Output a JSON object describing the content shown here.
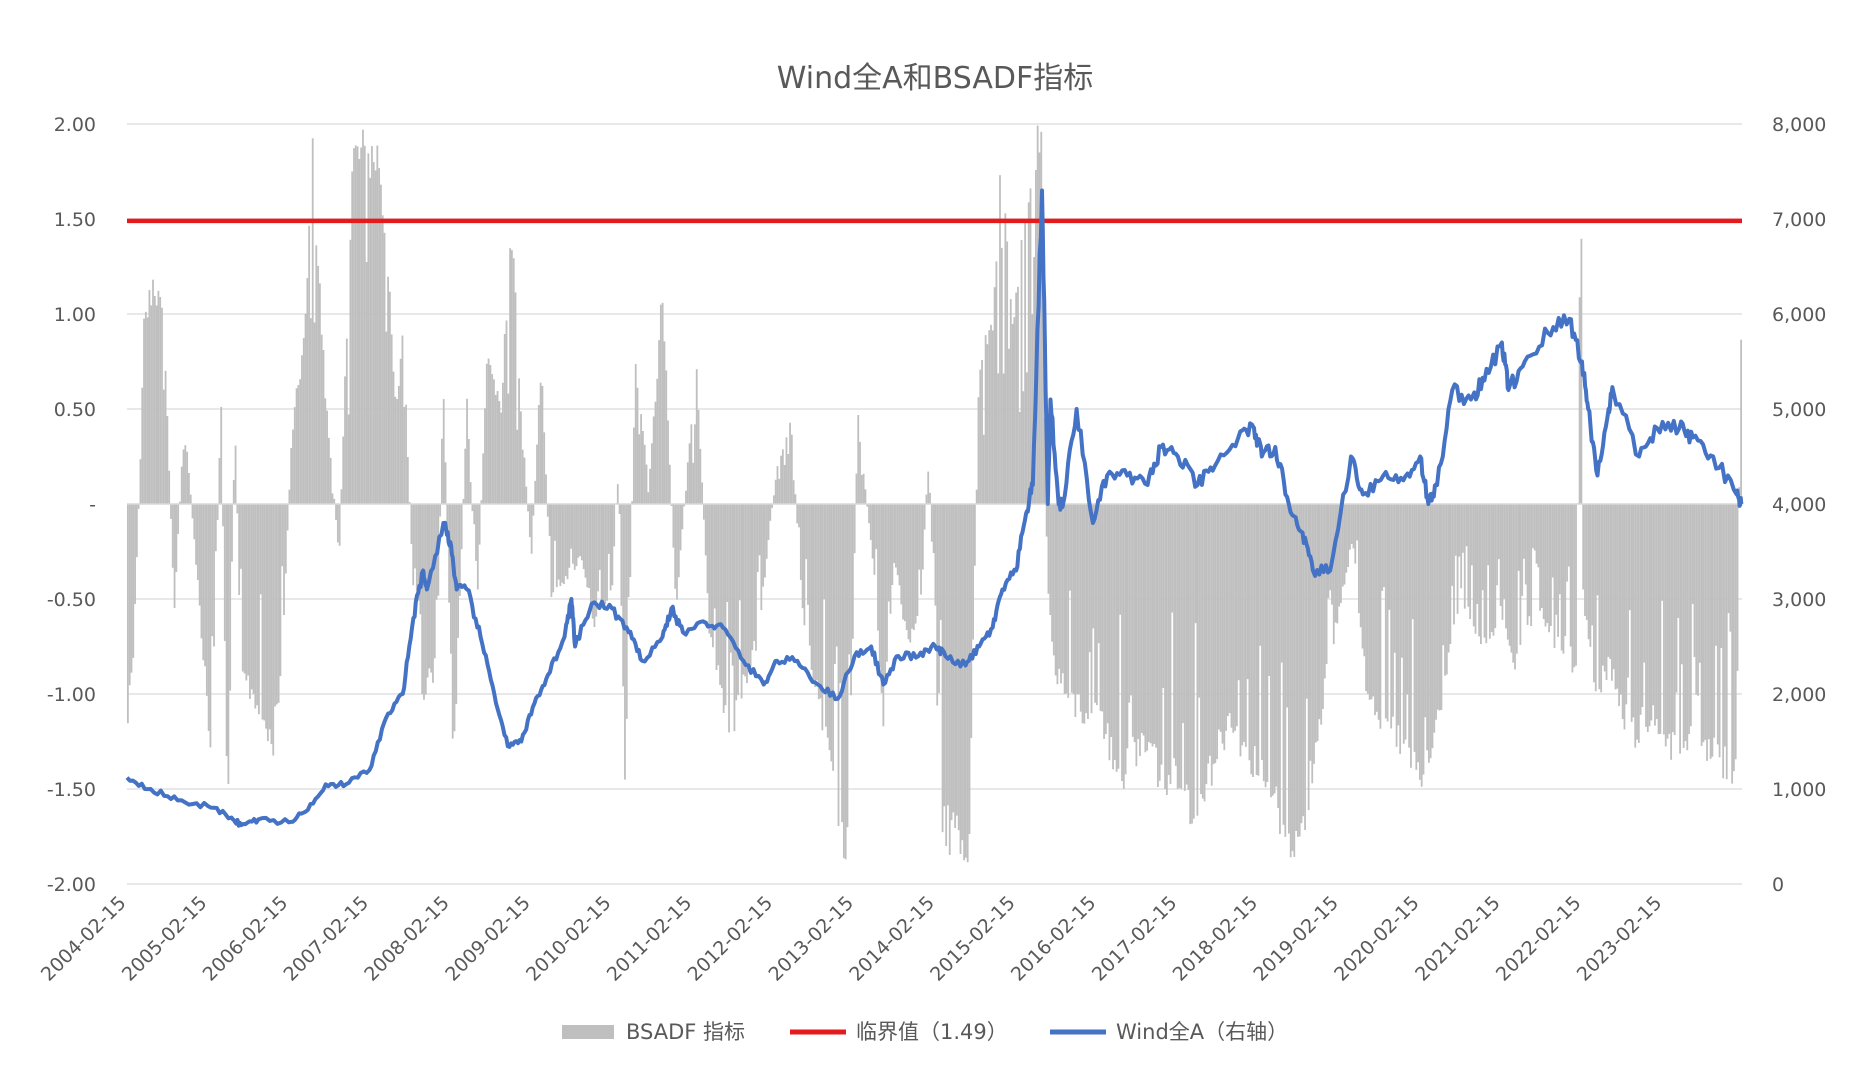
{
  "chart_data": {
    "type": "bar+line",
    "title": "Wind全A和BSADF指标",
    "left_axis": {
      "ylim": [
        -2.0,
        2.0
      ],
      "ticks": [
        {
          "value": 2.0,
          "label": "2.00"
        },
        {
          "value": 1.5,
          "label": "1.50"
        },
        {
          "value": 1.0,
          "label": "1.00"
        },
        {
          "value": 0.5,
          "label": "0.50"
        },
        {
          "value": 0.0,
          "label": "-"
        },
        {
          "value": -0.5,
          "label": "-0.50"
        },
        {
          "value": -1.0,
          "label": "-1.00"
        },
        {
          "value": -1.5,
          "label": "-1.50"
        },
        {
          "value": -2.0,
          "label": "-2.00"
        }
      ]
    },
    "right_axis": {
      "ylim": [
        0,
        8000
      ],
      "ticks": [
        {
          "value": 8000,
          "label": "8,000"
        },
        {
          "value": 7000,
          "label": "7,000"
        },
        {
          "value": 6000,
          "label": "6,000"
        },
        {
          "value": 5000,
          "label": "5,000"
        },
        {
          "value": 4000,
          "label": "4,000"
        },
        {
          "value": 3000,
          "label": "3,000"
        },
        {
          "value": 2000,
          "label": "2,000"
        },
        {
          "value": 1000,
          "label": "1,000"
        },
        {
          "value": 0,
          "label": "0"
        }
      ]
    },
    "x_axis": {
      "range": [
        "2004-02-15",
        "2024-02-08"
      ],
      "tick_labels": [
        "2004-02-15",
        "2005-02-15",
        "2006-02-15",
        "2007-02-15",
        "2008-02-15",
        "2009-02-15",
        "2010-02-15",
        "2011-02-15",
        "2012-02-15",
        "2013-02-15",
        "2014-02-15",
        "2015-02-15",
        "2016-02-15",
        "2017-02-15",
        "2018-02-15",
        "2019-02-15",
        "2020-02-15",
        "2021-02-15",
        "2022-02-15",
        "2023-02-15"
      ]
    },
    "grid": true,
    "legend_position": "bottom",
    "legend": [
      {
        "name": "BSADF 指标",
        "type": "bar",
        "color": "#bfbfbf"
      },
      {
        "name": "临界值（1.49）",
        "type": "line",
        "color": "#e41a1c"
      },
      {
        "name": "Wind全A（右轴）",
        "type": "line",
        "color": "#4472c4"
      }
    ],
    "critical_value": 1.49,
    "colors": {
      "bsadf": "#bfbfbf",
      "critical": "#e41a1c",
      "wind": "#4472c4",
      "grid": "#d9d9d9",
      "axis_text": "#595959"
    },
    "series": [
      {
        "name": "Wind全A（右轴）",
        "axis": "right",
        "points": [
          [
            "2004-02-15",
            1120
          ],
          [
            "2004-06-01",
            1000
          ],
          [
            "2004-10-01",
            880
          ],
          [
            "2005-02-15",
            820
          ],
          [
            "2005-06-01",
            700
          ],
          [
            "2005-07-15",
            620
          ],
          [
            "2005-10-01",
            680
          ],
          [
            "2006-02-15",
            650
          ],
          [
            "2006-05-01",
            760
          ],
          [
            "2006-08-01",
            1050
          ],
          [
            "2006-11-01",
            1050
          ],
          [
            "2007-02-15",
            1200
          ],
          [
            "2007-05-01",
            1750
          ],
          [
            "2007-07-15",
            2000
          ],
          [
            "2007-09-01",
            2800
          ],
          [
            "2007-10-15",
            3300
          ],
          [
            "2007-11-01",
            3100
          ],
          [
            "2008-01-15",
            3800
          ],
          [
            "2008-02-15",
            3600
          ],
          [
            "2008-03-15",
            3100
          ],
          [
            "2008-05-01",
            3100
          ],
          [
            "2008-07-01",
            2600
          ],
          [
            "2008-09-01",
            2000
          ],
          [
            "2008-11-01",
            1450
          ],
          [
            "2009-01-01",
            1500
          ],
          [
            "2009-03-01",
            1900
          ],
          [
            "2009-05-01",
            2200
          ],
          [
            "2009-07-15",
            2600
          ],
          [
            "2009-08-15",
            3000
          ],
          [
            "2009-09-01",
            2500
          ],
          [
            "2009-11-15",
            2950
          ],
          [
            "2010-02-15",
            2900
          ],
          [
            "2010-05-01",
            2650
          ],
          [
            "2010-07-01",
            2350
          ],
          [
            "2010-10-01",
            2600
          ],
          [
            "2010-11-10",
            2900
          ],
          [
            "2011-01-01",
            2650
          ],
          [
            "2011-04-15",
            2750
          ],
          [
            "2011-07-01",
            2700
          ],
          [
            "2011-10-01",
            2350
          ],
          [
            "2012-01-01",
            2100
          ],
          [
            "2012-03-01",
            2350
          ],
          [
            "2012-06-01",
            2350
          ],
          [
            "2012-09-01",
            2100
          ],
          [
            "2012-12-01",
            1950
          ],
          [
            "2013-02-15",
            2400
          ],
          [
            "2013-05-01",
            2500
          ],
          [
            "2013-06-25",
            2100
          ],
          [
            "2013-09-01",
            2400
          ],
          [
            "2013-12-01",
            2400
          ],
          [
            "2014-02-15",
            2500
          ],
          [
            "2014-04-01",
            2400
          ],
          [
            "2014-07-01",
            2300
          ],
          [
            "2014-09-01",
            2500
          ],
          [
            "2014-11-01",
            2700
          ],
          [
            "2014-12-15",
            3100
          ],
          [
            "2015-02-15",
            3300
          ],
          [
            "2015-04-01",
            3900
          ],
          [
            "2015-05-01",
            4200
          ],
          [
            "2015-06-12",
            7300
          ],
          [
            "2015-07-08",
            4000
          ],
          [
            "2015-07-20",
            5100
          ],
          [
            "2015-08-26",
            4000
          ],
          [
            "2015-09-15",
            4000
          ],
          [
            "2015-11-15",
            5000
          ],
          [
            "2016-01-28",
            3800
          ],
          [
            "2016-04-01",
            4300
          ],
          [
            "2016-07-01",
            4300
          ],
          [
            "2016-10-01",
            4200
          ],
          [
            "2016-11-30",
            4600
          ],
          [
            "2017-02-15",
            4500
          ],
          [
            "2017-05-15",
            4200
          ],
          [
            "2017-08-01",
            4400
          ],
          [
            "2017-11-15",
            4700
          ],
          [
            "2018-01-25",
            4800
          ],
          [
            "2018-03-01",
            4500
          ],
          [
            "2018-05-01",
            4600
          ],
          [
            "2018-07-01",
            4000
          ],
          [
            "2018-09-01",
            3700
          ],
          [
            "2018-10-18",
            3300
          ],
          [
            "2019-01-04",
            3300
          ],
          [
            "2019-04-08",
            4500
          ],
          [
            "2019-06-01",
            4100
          ],
          [
            "2019-09-01",
            4300
          ],
          [
            "2019-12-01",
            4250
          ],
          [
            "2020-02-15",
            4500
          ],
          [
            "2020-03-23",
            4000
          ],
          [
            "2020-05-01",
            4200
          ],
          [
            "2020-07-09",
            5200
          ],
          [
            "2020-10-01",
            5100
          ],
          [
            "2020-12-01",
            5300
          ],
          [
            "2021-02-18",
            5700
          ],
          [
            "2021-03-20",
            5200
          ],
          [
            "2021-06-01",
            5500
          ],
          [
            "2021-09-14",
            5800
          ],
          [
            "2021-12-20",
            5950
          ],
          [
            "2022-02-15",
            5500
          ],
          [
            "2022-03-15",
            5000
          ],
          [
            "2022-04-26",
            4300
          ],
          [
            "2022-06-15",
            5000
          ],
          [
            "2022-07-05",
            5200
          ],
          [
            "2022-10-31",
            4500
          ],
          [
            "2023-01-20",
            4800
          ],
          [
            "2023-05-01",
            4800
          ],
          [
            "2023-07-01",
            4700
          ],
          [
            "2023-10-01",
            4500
          ],
          [
            "2024-01-15",
            4100
          ],
          [
            "2024-02-05",
            4000
          ]
        ]
      },
      {
        "name": "BSADF 指标",
        "axis": "left",
        "envelope": [
          [
            "2004-02-15",
            -1.3
          ],
          [
            "2004-03-15",
            -0.8
          ],
          [
            "2004-04-15",
            0.2
          ],
          [
            "2004-05-01",
            1.0
          ],
          [
            "2004-06-15",
            1.3
          ],
          [
            "2004-08-01",
            1.0
          ],
          [
            "2004-09-15",
            -0.6
          ],
          [
            "2004-11-01",
            0.5
          ],
          [
            "2005-01-15",
            -0.7
          ],
          [
            "2005-03-01",
            -1.4
          ],
          [
            "2005-04-15",
            0.6
          ],
          [
            "2005-05-15",
            -1.9
          ],
          [
            "2005-06-15",
            0.6
          ],
          [
            "2005-07-15",
            -1.0
          ],
          [
            "2005-09-15",
            -1.1
          ],
          [
            "2005-12-01",
            -1.4
          ],
          [
            "2006-01-15",
            -0.9
          ],
          [
            "2006-03-01",
            0.4
          ],
          [
            "2006-05-01",
            1.0
          ],
          [
            "2006-06-01",
            2.0
          ],
          [
            "2006-08-01",
            0.6
          ],
          [
            "2006-10-01",
            -0.3
          ],
          [
            "2006-12-01",
            2.0
          ],
          [
            "2007-04-01",
            2.0
          ],
          [
            "2007-05-01",
            1.5
          ],
          [
            "2007-06-15",
            0.5
          ],
          [
            "2007-07-15",
            1.0
          ],
          [
            "2007-09-01",
            -0.5
          ],
          [
            "2007-10-15",
            -1.1
          ],
          [
            "2007-12-15",
            -0.9
          ],
          [
            "2008-01-15",
            0.7
          ],
          [
            "2008-03-01",
            -1.5
          ],
          [
            "2008-05-01",
            0.6
          ],
          [
            "2008-06-15",
            -0.6
          ],
          [
            "2008-08-01",
            0.9
          ],
          [
            "2008-10-01",
            0.5
          ],
          [
            "2008-11-15",
            1.6
          ],
          [
            "2009-01-01",
            0.5
          ],
          [
            "2009-02-15",
            -0.3
          ],
          [
            "2009-04-01",
            0.8
          ],
          [
            "2009-05-15",
            -0.5
          ],
          [
            "2009-08-01",
            -0.4
          ],
          [
            "2009-10-01",
            -0.3
          ],
          [
            "2009-12-01",
            -0.7
          ],
          [
            "2010-02-15",
            -0.5
          ],
          [
            "2010-03-15",
            0.3
          ],
          [
            "2010-04-15",
            -1.6
          ],
          [
            "2010-06-01",
            0.8
          ],
          [
            "2010-08-01",
            0.1
          ],
          [
            "2010-10-01",
            1.2
          ],
          [
            "2010-12-01",
            -0.6
          ],
          [
            "2011-03-01",
            0.8
          ],
          [
            "2011-05-01",
            -0.7
          ],
          [
            "2011-08-01",
            -1.3
          ],
          [
            "2011-10-01",
            -1.0
          ],
          [
            "2011-12-01",
            -0.8
          ],
          [
            "2012-03-01",
            0.2
          ],
          [
            "2012-05-01",
            0.5
          ],
          [
            "2012-07-01",
            -0.7
          ],
          [
            "2012-09-01",
            -1.1
          ],
          [
            "2012-11-15",
            -1.6
          ],
          [
            "2013-01-15",
            -2.0
          ],
          [
            "2013-03-01",
            0.5
          ],
          [
            "2013-05-15",
            -0.4
          ],
          [
            "2013-06-25",
            -1.2
          ],
          [
            "2013-08-15",
            -0.3
          ],
          [
            "2013-10-15",
            -0.8
          ],
          [
            "2013-12-15",
            -0.5
          ],
          [
            "2014-01-15",
            0.3
          ],
          [
            "2014-03-15",
            -1.8
          ],
          [
            "2014-05-15",
            -1.9
          ],
          [
            "2014-07-15",
            -2.0
          ],
          [
            "2014-09-01",
            0.8
          ],
          [
            "2014-11-01",
            1.0
          ],
          [
            "2014-12-15",
            2.0
          ],
          [
            "2015-02-01",
            1.0
          ],
          [
            "2015-05-01",
            2.0
          ],
          [
            "2015-06-12",
            2.0
          ],
          [
            "2015-07-01",
            -0.3
          ],
          [
            "2015-08-01",
            -0.9
          ],
          [
            "2015-10-01",
            -1.1
          ],
          [
            "2015-12-15",
            -1.2
          ],
          [
            "2016-02-15",
            -1.1
          ],
          [
            "2016-04-15",
            -1.4
          ],
          [
            "2016-06-15",
            -1.5
          ],
          [
            "2016-08-15",
            -1.4
          ],
          [
            "2016-10-15",
            -1.4
          ],
          [
            "2016-12-15",
            -1.6
          ],
          [
            "2017-02-15",
            -1.5
          ],
          [
            "2017-04-15",
            -1.7
          ],
          [
            "2017-06-15",
            -1.6
          ],
          [
            "2017-08-15",
            -1.4
          ],
          [
            "2017-10-15",
            -1.2
          ],
          [
            "2017-12-15",
            -1.4
          ],
          [
            "2018-02-15",
            -1.5
          ],
          [
            "2018-04-15",
            -1.7
          ],
          [
            "2018-06-15",
            -1.8
          ],
          [
            "2018-08-15",
            -2.0
          ],
          [
            "2018-10-15",
            -1.5
          ],
          [
            "2018-12-15",
            -1.0
          ],
          [
            "2019-02-15",
            -0.6
          ],
          [
            "2019-04-15",
            -0.2
          ],
          [
            "2019-06-15",
            -1.0
          ],
          [
            "2019-08-15",
            -1.2
          ],
          [
            "2019-10-15",
            -1.3
          ],
          [
            "2019-12-15",
            -1.4
          ],
          [
            "2020-02-15",
            -1.6
          ],
          [
            "2020-04-15",
            -1.4
          ],
          [
            "2020-06-15",
            -0.9
          ],
          [
            "2020-08-15",
            -0.5
          ],
          [
            "2020-10-15",
            -0.7
          ],
          [
            "2020-12-15",
            -0.8
          ],
          [
            "2021-02-15",
            -0.6
          ],
          [
            "2021-04-15",
            -0.9
          ],
          [
            "2021-06-15",
            -0.7
          ],
          [
            "2021-08-15",
            -0.6
          ],
          [
            "2021-10-15",
            -0.8
          ],
          [
            "2021-12-15",
            -0.8
          ],
          [
            "2022-01-20",
            -1.0
          ],
          [
            "2022-02-10",
            2.0
          ],
          [
            "2022-02-20",
            -0.5
          ],
          [
            "2022-04-15",
            -1.1
          ],
          [
            "2022-06-15",
            -0.9
          ],
          [
            "2022-08-15",
            -1.2
          ],
          [
            "2022-10-15",
            -1.3
          ],
          [
            "2022-12-15",
            -1.2
          ],
          [
            "2023-02-15",
            -1.3
          ],
          [
            "2023-04-15",
            -1.4
          ],
          [
            "2023-06-15",
            -1.3
          ],
          [
            "2023-08-15",
            -1.4
          ],
          [
            "2023-10-15",
            -1.45
          ],
          [
            "2023-12-15",
            -1.5
          ],
          [
            "2024-01-15",
            -1.5
          ],
          [
            "2024-01-25",
            -0.2
          ],
          [
            "2024-02-01",
            0.9
          ],
          [
            "2024-02-08",
            0.9
          ]
        ]
      }
    ]
  }
}
